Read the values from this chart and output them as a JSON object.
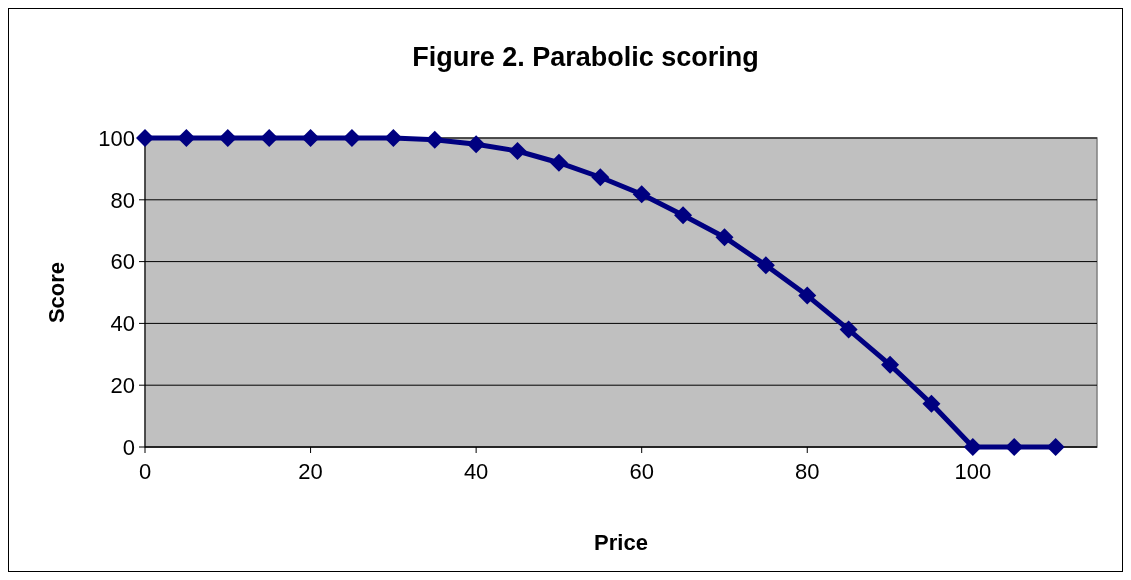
{
  "chart_data": {
    "type": "line",
    "title": "Figure 2. Parabolic scoring",
    "xlabel": "Price",
    "ylabel": "Score",
    "x": [
      0,
      5,
      10,
      15,
      20,
      25,
      30,
      35,
      40,
      45,
      50,
      55,
      60,
      65,
      70,
      75,
      80,
      85,
      90,
      95,
      100,
      105,
      110
    ],
    "series": [
      {
        "color": "#000080",
        "values": [
          100,
          100,
          100,
          100,
          100,
          100,
          100,
          99.4,
          98,
          95.8,
          92,
          87.3,
          81.8,
          75,
          67.9,
          58.8,
          49,
          38,
          26.6,
          14,
          0,
          0,
          0
        ]
      }
    ],
    "xlim": [
      0,
      115
    ],
    "xticks": [
      0,
      20,
      40,
      60,
      80,
      100
    ],
    "ylim": [
      0,
      100
    ],
    "yticks": [
      0,
      20,
      40,
      60,
      80,
      100
    ],
    "grid": "y",
    "marker": "diamond",
    "line_style": "solid"
  }
}
